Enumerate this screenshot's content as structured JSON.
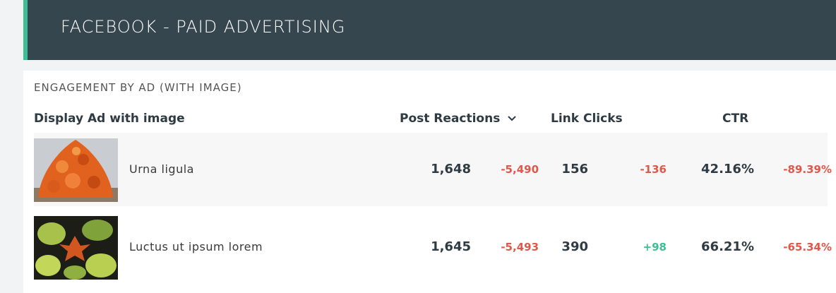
{
  "header": {
    "title": "FACEBOOK - PAID ADVERTISING"
  },
  "widget": {
    "title": "ENGAGEMENT BY AD (WITH IMAGE)",
    "table": {
      "columns": [
        "Display Ad with image",
        "Post Reactions",
        "Link Clicks",
        "CTR"
      ],
      "rows": [
        {
          "name": "Urna ligula",
          "post_reactions": "1,648",
          "post_reactions_change": "-5,490",
          "link_clicks": "156",
          "link_clicks_change": "-136",
          "ctr": "42.16%",
          "ctr_change": "-89.39%"
        },
        {
          "name": "Luctus ut ipsum lorem",
          "post_reactions": "1,645",
          "post_reactions_change": "-5,493",
          "link_clicks": "390",
          "link_clicks_change": "+98",
          "ctr": "66.21%",
          "ctr_change": "-65.34%"
        }
      ]
    }
  }
}
